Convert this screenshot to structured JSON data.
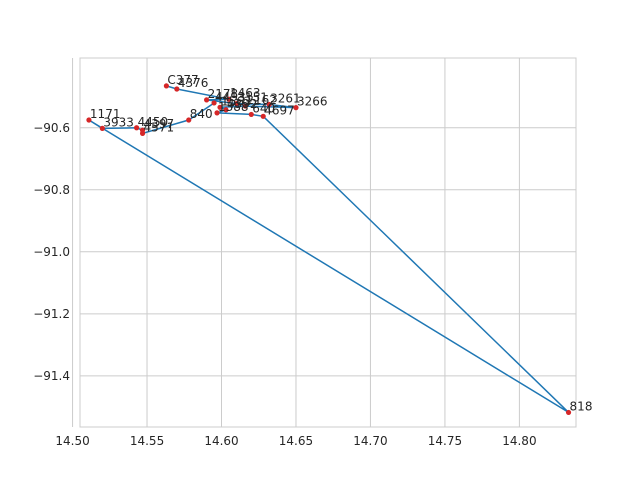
{
  "chart_data": {
    "type": "line",
    "title": "",
    "xlabel": "",
    "ylabel": "",
    "xlim": [
      14.505,
      14.838
    ],
    "ylim": [
      -91.565,
      -90.375
    ],
    "grid": true,
    "x_ticks": [
      14.5,
      14.55,
      14.6,
      14.65,
      14.7,
      14.75,
      14.8
    ],
    "x_tick_labels": [
      "14.50",
      "14.55",
      "14.60",
      "14.65",
      "14.70",
      "14.75",
      "14.80"
    ],
    "y_ticks": [
      -90.6,
      -90.8,
      -91.0,
      -91.2,
      -91.4
    ],
    "y_tick_labels": [
      "−90.6",
      "−90.8",
      "−91.0",
      "−91.2",
      "−91.4"
    ],
    "colors": {
      "line": "#1f77b4",
      "marker": "#d62728",
      "grid": "#cccccc",
      "axes": "#cccccc",
      "text": "#262626"
    },
    "series": [
      {
        "points": [
          {
            "label": "C377",
            "x": 14.563,
            "y": -90.465
          },
          {
            "label": "4376",
            "x": 14.57,
            "y": -90.475
          },
          {
            "label": "1463",
            "x": 14.605,
            "y": -90.508
          },
          {
            "label": "2178",
            "x": 14.59,
            "y": -90.51
          },
          {
            "label": "3151",
            "x": 14.61,
            "y": -90.522
          },
          {
            "label": "3261",
            "x": 14.632,
            "y": -90.525
          },
          {
            "label": "3266",
            "x": 14.65,
            "y": -90.535
          },
          {
            "label": "2162",
            "x": 14.616,
            "y": -90.53
          },
          {
            "label": "1563",
            "x": 14.599,
            "y": -90.534
          },
          {
            "label": "4392",
            "x": 14.603,
            "y": -90.542
          },
          {
            "label": "1388",
            "x": 14.597,
            "y": -90.552
          },
          {
            "label": "640",
            "x": 14.62,
            "y": -90.557
          },
          {
            "label": "4697",
            "x": 14.628,
            "y": -90.563
          },
          {
            "label": "818",
            "x": 14.833,
            "y": -91.518
          },
          {
            "label": "1171",
            "x": 14.511,
            "y": -90.575
          },
          {
            "label": "3933",
            "x": 14.52,
            "y": -90.602
          },
          {
            "label": "4450",
            "x": 14.543,
            "y": -90.6
          },
          {
            "label": "4397",
            "x": 14.547,
            "y": -90.608
          },
          {
            "label": "4571",
            "x": 14.547,
            "y": -90.618
          },
          {
            "label": "840",
            "x": 14.578,
            "y": -90.575
          },
          {
            "label": "4493",
            "x": 14.595,
            "y": -90.52
          }
        ]
      }
    ]
  }
}
